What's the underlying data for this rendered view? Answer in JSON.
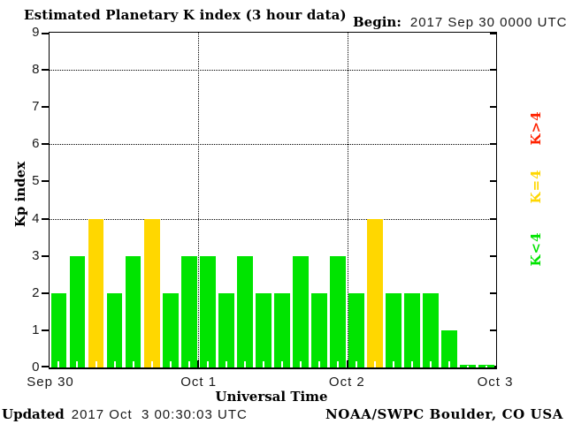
{
  "header": {
    "title": "Estimated Planetary K index (3 hour data)",
    "begin_label": "Begin:",
    "begin_value": "2017 Sep 30 0000 UTC"
  },
  "footer": {
    "updated_label": "Updated",
    "updated_value": "2017 Oct  3 00:30:03 UTC",
    "source": "NOAA/SWPC Boulder, CO USA"
  },
  "chart_data": {
    "type": "bar",
    "title": "Estimated Planetary K index (3 hour data)",
    "xlabel": "Universal Time",
    "ylabel": "Kp index",
    "ylim": [
      0,
      9
    ],
    "yticks": [
      0,
      1,
      2,
      3,
      4,
      5,
      6,
      7,
      8,
      9
    ],
    "grid_y": [
      4,
      6,
      8
    ],
    "hours_per_bar": 3,
    "x_day_labels": [
      "Sep 30",
      "Oct 1",
      "Oct 2",
      "Oct 3"
    ],
    "series": [
      {
        "day": "Sep 30",
        "values": [
          2,
          3,
          4,
          2,
          3,
          4,
          2,
          3
        ]
      },
      {
        "day": "Oct 1",
        "values": [
          3,
          2,
          3,
          2,
          2,
          3,
          2,
          3
        ]
      },
      {
        "day": "Oct 2",
        "values": [
          2,
          4,
          2,
          2,
          2,
          1,
          0,
          0
        ]
      }
    ],
    "color_rule": {
      "below_4": "#00E400",
      "equal_4": "#FFD700",
      "above_4": "#FF2200"
    },
    "legend": [
      {
        "label": "K>4",
        "color": "#FF2200"
      },
      {
        "label": "K=4",
        "color": "#FFD700"
      },
      {
        "label": "K<4",
        "color": "#00E400"
      }
    ]
  }
}
